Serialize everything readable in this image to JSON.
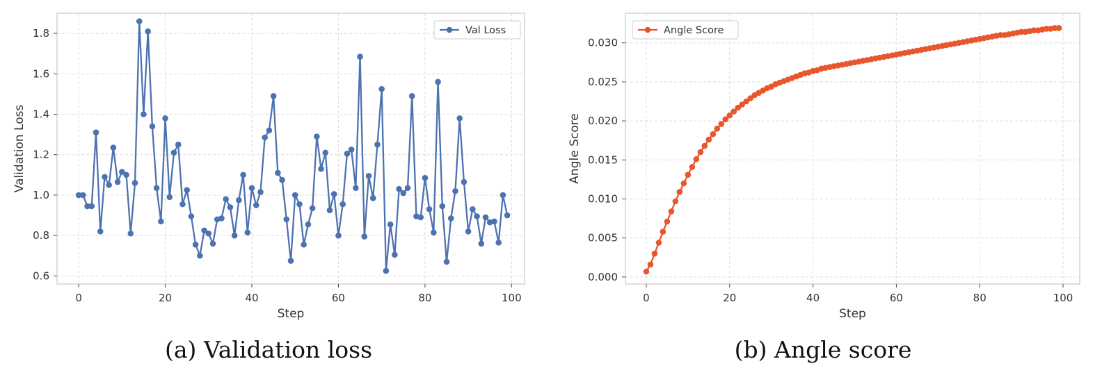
{
  "chart_data": [
    {
      "type": "line",
      "panel": "a",
      "caption": "(a) Validation loss",
      "xlabel": "Step",
      "ylabel": "Validation Loss",
      "xlim": [
        -5,
        103
      ],
      "ylim": [
        0.56,
        1.9
      ],
      "xticks": [
        0,
        20,
        40,
        60,
        80,
        100
      ],
      "yticks": [
        0.6,
        0.8,
        1.0,
        1.2,
        1.4,
        1.6,
        1.8
      ],
      "ytick_labels": [
        "0.6",
        "0.8",
        "1.0",
        "1.2",
        "1.4",
        "1.6",
        "1.8"
      ],
      "grid": true,
      "legend_position": "top-right",
      "color": "#4c72b0",
      "series": [
        {
          "name": "Val Loss",
          "x": [
            0,
            1,
            2,
            3,
            4,
            5,
            6,
            7,
            8,
            9,
            10,
            11,
            12,
            13,
            14,
            15,
            16,
            17,
            18,
            19,
            20,
            21,
            22,
            23,
            24,
            25,
            26,
            27,
            28,
            29,
            30,
            31,
            32,
            33,
            34,
            35,
            36,
            37,
            38,
            39,
            40,
            41,
            42,
            43,
            44,
            45,
            46,
            47,
            48,
            49,
            50,
            51,
            52,
            53,
            54,
            55,
            56,
            57,
            58,
            59,
            60,
            61,
            62,
            63,
            64,
            65,
            66,
            67,
            68,
            69,
            70,
            71,
            72,
            73,
            74,
            75,
            76,
            77,
            78,
            79,
            80,
            81,
            82,
            83,
            84,
            85,
            86,
            87,
            88,
            89,
            90,
            91,
            92,
            93,
            94,
            95,
            96,
            97,
            98,
            99
          ],
          "values": [
            1.0,
            1.0,
            0.945,
            0.945,
            1.31,
            0.82,
            1.09,
            1.05,
            1.235,
            1.065,
            1.115,
            1.1,
            0.81,
            1.06,
            1.86,
            1.4,
            1.81,
            1.34,
            1.035,
            0.87,
            1.38,
            0.99,
            1.21,
            1.25,
            0.955,
            1.025,
            0.895,
            0.755,
            0.7,
            0.825,
            0.81,
            0.76,
            0.88,
            0.885,
            0.98,
            0.94,
            0.8,
            0.975,
            1.1,
            0.815,
            1.035,
            0.95,
            1.015,
            1.285,
            1.32,
            1.49,
            1.11,
            1.075,
            0.88,
            0.675,
            1.0,
            0.955,
            0.755,
            0.855,
            0.935,
            1.29,
            1.13,
            1.21,
            0.925,
            1.005,
            0.8,
            0.955,
            1.205,
            1.225,
            1.035,
            1.685,
            0.795,
            1.095,
            0.985,
            1.25,
            1.525,
            0.625,
            0.855,
            0.705,
            1.03,
            1.01,
            1.035,
            1.49,
            0.895,
            0.89,
            1.085,
            0.93,
            0.815,
            1.56,
            0.945,
            0.67,
            0.885,
            1.02,
            1.38,
            1.065,
            0.82,
            0.93,
            0.895,
            0.76,
            0.89,
            0.865,
            0.87,
            0.765,
            1.0,
            0.9
          ]
        }
      ]
    },
    {
      "type": "line",
      "panel": "b",
      "caption": "(b) Angle score",
      "xlabel": "Step",
      "ylabel": "Angle Score",
      "xlim": [
        -5,
        104
      ],
      "ylim": [
        -0.0009,
        0.0338
      ],
      "xticks": [
        0,
        20,
        40,
        60,
        80,
        100
      ],
      "yticks": [
        0.0,
        0.005,
        0.01,
        0.015,
        0.02,
        0.025,
        0.03
      ],
      "ytick_labels": [
        "0.000",
        "0.005",
        "0.010",
        "0.015",
        "0.020",
        "0.025",
        "0.030"
      ],
      "grid": true,
      "legend_position": "top-left",
      "color": "#e8562c",
      "series": [
        {
          "name": "Angle Score",
          "x": [
            0,
            1,
            2,
            3,
            4,
            5,
            6,
            7,
            8,
            9,
            10,
            11,
            12,
            13,
            14,
            15,
            16,
            17,
            18,
            19,
            20,
            21,
            22,
            23,
            24,
            25,
            26,
            27,
            28,
            29,
            30,
            31,
            32,
            33,
            34,
            35,
            36,
            37,
            38,
            39,
            40,
            41,
            42,
            43,
            44,
            45,
            46,
            47,
            48,
            49,
            50,
            51,
            52,
            53,
            54,
            55,
            56,
            57,
            58,
            59,
            60,
            61,
            62,
            63,
            64,
            65,
            66,
            67,
            68,
            69,
            70,
            71,
            72,
            73,
            74,
            75,
            76,
            77,
            78,
            79,
            80,
            81,
            82,
            83,
            84,
            85,
            86,
            87,
            88,
            89,
            90,
            91,
            92,
            93,
            94,
            95,
            96,
            97,
            98,
            99
          ],
          "values": [
            0.0007,
            0.0016,
            0.003,
            0.0044,
            0.0058,
            0.0071,
            0.0084,
            0.0097,
            0.0109,
            0.012,
            0.0131,
            0.0141,
            0.0151,
            0.016,
            0.0168,
            0.0176,
            0.0183,
            0.019,
            0.0196,
            0.0202,
            0.0207,
            0.0212,
            0.0217,
            0.0221,
            0.0225,
            0.0229,
            0.0233,
            0.0236,
            0.0239,
            0.0242,
            0.0244,
            0.0247,
            0.0249,
            0.0251,
            0.0253,
            0.0255,
            0.0257,
            0.0259,
            0.0261,
            0.0262,
            0.0264,
            0.0265,
            0.0267,
            0.0268,
            0.0269,
            0.027,
            0.0271,
            0.0272,
            0.0273,
            0.0274,
            0.0275,
            0.0276,
            0.0277,
            0.0278,
            0.0279,
            0.028,
            0.0281,
            0.0282,
            0.0283,
            0.0284,
            0.0285,
            0.0286,
            0.0287,
            0.0288,
            0.0289,
            0.029,
            0.0291,
            0.0292,
            0.0293,
            0.0294,
            0.0295,
            0.0296,
            0.0297,
            0.0298,
            0.0299,
            0.03,
            0.0301,
            0.0302,
            0.0303,
            0.0304,
            0.0305,
            0.0306,
            0.0307,
            0.0308,
            0.0309,
            0.031,
            0.031,
            0.0311,
            0.0312,
            0.0313,
            0.0314,
            0.0314,
            0.0315,
            0.0316,
            0.0316,
            0.0317,
            0.0318,
            0.0318,
            0.0319,
            0.0319
          ]
        }
      ]
    }
  ]
}
